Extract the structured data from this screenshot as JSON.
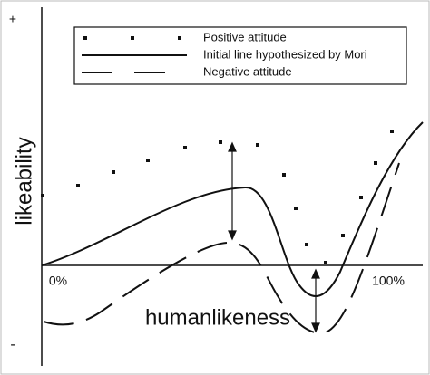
{
  "diagram": {
    "axis_top": "+",
    "axis_bottom": "-",
    "y_label": "likeability",
    "x_label": "humanlikeness",
    "x_start": "0%",
    "x_end": "100%",
    "legend": [
      "Positive attitude",
      "Initial line hypothesized by Mori",
      "Negative attitude"
    ]
  }
}
